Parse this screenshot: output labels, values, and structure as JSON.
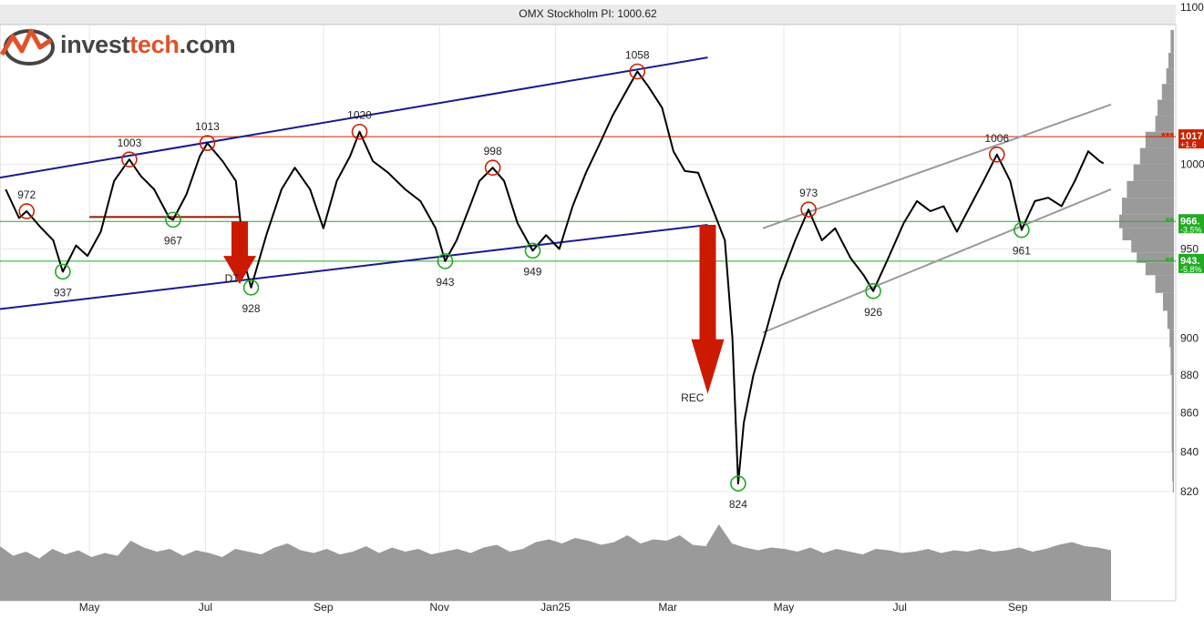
{
  "header": {
    "title": "OMX Stockholm PI: 1000.62"
  },
  "logo": {
    "prefix": "invest",
    "accent": "tech",
    "suffix": ".com",
    "icon": "investtech-logo-icon"
  },
  "colors": {
    "price": "#000000",
    "trend_channel": "#1a1a8c",
    "trend_channel_recent": "#9a9a9a",
    "resistance": "#cc2200",
    "support": "#22aa22",
    "arrow": "#cc1a00",
    "volume": "#9a9a9a",
    "volume_profile": "#9a9a9a"
  },
  "chart_data": {
    "type": "line",
    "title": "OMX Stockholm PI: 1000.62",
    "x_ticks": [
      "May",
      "Jul",
      "Sep",
      "Nov",
      "Jan25",
      "Mar",
      "May",
      "Jul",
      "Sep"
    ],
    "y_ticks": [
      820,
      840,
      860,
      880,
      900,
      950,
      1000,
      1100
    ],
    "y_scale": "log",
    "ylim": [
      810,
      1100
    ],
    "series": [
      {
        "points": [
          [
            "2024-03-18",
            985
          ],
          [
            "2024-03-25",
            968
          ],
          [
            "2024-03-29",
            972
          ],
          [
            "2024-04-05",
            963
          ],
          [
            "2024-04-12",
            955
          ],
          [
            "2024-04-17",
            937
          ],
          [
            "2024-04-24",
            952
          ],
          [
            "2024-04-30",
            946
          ],
          [
            "2024-05-07",
            960
          ],
          [
            "2024-05-14",
            990
          ],
          [
            "2024-05-22",
            1003
          ],
          [
            "2024-05-28",
            993
          ],
          [
            "2024-06-04",
            985
          ],
          [
            "2024-06-12",
            968
          ],
          [
            "2024-06-14",
            967
          ],
          [
            "2024-06-21",
            982
          ],
          [
            "2024-06-28",
            1005
          ],
          [
            "2024-07-02",
            1013
          ],
          [
            "2024-07-10",
            1002
          ],
          [
            "2024-07-17",
            990
          ],
          [
            "2024-07-22",
            940
          ],
          [
            "2024-07-25",
            928
          ],
          [
            "2024-08-02",
            958
          ],
          [
            "2024-08-10",
            985
          ],
          [
            "2024-08-17",
            998
          ],
          [
            "2024-08-25",
            985
          ],
          [
            "2024-09-01",
            962
          ],
          [
            "2024-09-08",
            990
          ],
          [
            "2024-09-15",
            1005
          ],
          [
            "2024-09-20",
            1020
          ],
          [
            "2024-09-27",
            1002
          ],
          [
            "2024-10-05",
            995
          ],
          [
            "2024-10-14",
            985
          ],
          [
            "2024-10-22",
            978
          ],
          [
            "2024-10-30",
            962
          ],
          [
            "2024-11-04",
            943
          ],
          [
            "2024-11-10",
            955
          ],
          [
            "2024-11-17",
            975
          ],
          [
            "2024-11-22",
            990
          ],
          [
            "2024-11-29",
            998
          ],
          [
            "2024-12-05",
            990
          ],
          [
            "2024-12-12",
            965
          ],
          [
            "2024-12-20",
            949
          ],
          [
            "2024-12-27",
            958
          ],
          [
            "2025-01-03",
            950
          ],
          [
            "2025-01-10",
            975
          ],
          [
            "2025-01-17",
            995
          ],
          [
            "2025-01-24",
            1012
          ],
          [
            "2025-01-31",
            1030
          ],
          [
            "2025-02-07",
            1045
          ],
          [
            "2025-02-13",
            1058
          ],
          [
            "2025-02-19",
            1048
          ],
          [
            "2025-02-26",
            1035
          ],
          [
            "2025-03-04",
            1008
          ],
          [
            "2025-03-10",
            996
          ],
          [
            "2025-03-17",
            995
          ],
          [
            "2025-03-24",
            975
          ],
          [
            "2025-03-31",
            955
          ],
          [
            "2025-04-04",
            900
          ],
          [
            "2025-04-07",
            824
          ],
          [
            "2025-04-10",
            855
          ],
          [
            "2025-04-15",
            880
          ],
          [
            "2025-04-22",
            905
          ],
          [
            "2025-04-29",
            932
          ],
          [
            "2025-05-07",
            955
          ],
          [
            "2025-05-14",
            973
          ],
          [
            "2025-05-21",
            955
          ],
          [
            "2025-05-28",
            962
          ],
          [
            "2025-06-05",
            945
          ],
          [
            "2025-06-12",
            935
          ],
          [
            "2025-06-17",
            926
          ],
          [
            "2025-06-25",
            945
          ],
          [
            "2025-07-03",
            965
          ],
          [
            "2025-07-10",
            978
          ],
          [
            "2025-07-17",
            972
          ],
          [
            "2025-07-24",
            975
          ],
          [
            "2025-07-31",
            960
          ],
          [
            "2025-08-07",
            975
          ],
          [
            "2025-08-14",
            990
          ],
          [
            "2025-08-21",
            1006
          ],
          [
            "2025-08-28",
            990
          ],
          [
            "2025-09-03",
            961
          ],
          [
            "2025-09-10",
            978
          ],
          [
            "2025-09-17",
            980
          ],
          [
            "2025-09-24",
            975
          ],
          [
            "2025-10-01",
            990
          ],
          [
            "2025-10-08",
            1008
          ],
          [
            "2025-10-14",
            1002
          ],
          [
            "2025-10-16",
            1000.62
          ]
        ]
      }
    ],
    "extrema_labels": [
      {
        "date": "2024-03-29",
        "value": 972,
        "kind": "top"
      },
      {
        "date": "2024-04-17",
        "value": 937,
        "kind": "bottom"
      },
      {
        "date": "2024-05-22",
        "value": 1003,
        "kind": "top"
      },
      {
        "date": "2024-06-14",
        "value": 967,
        "kind": "bottom"
      },
      {
        "date": "2024-07-02",
        "value": 1013,
        "kind": "top"
      },
      {
        "date": "2024-07-25",
        "value": 928,
        "kind": "bottom"
      },
      {
        "date": "2024-09-20",
        "value": 1020,
        "kind": "top"
      },
      {
        "date": "2024-11-04",
        "value": 943,
        "kind": "bottom"
      },
      {
        "date": "2024-11-29",
        "value": 998,
        "kind": "top"
      },
      {
        "date": "2024-12-20",
        "value": 949,
        "kind": "bottom"
      },
      {
        "date": "2025-02-13",
        "value": 1058,
        "kind": "top"
      },
      {
        "date": "2025-04-07",
        "value": 824,
        "kind": "bottom"
      },
      {
        "date": "2025-05-14",
        "value": 973,
        "kind": "top"
      },
      {
        "date": "2025-06-17",
        "value": 926,
        "kind": "bottom"
      },
      {
        "date": "2025-08-21",
        "value": 1006,
        "kind": "top"
      },
      {
        "date": "2025-09-03",
        "value": 961,
        "kind": "bottom"
      }
    ],
    "trend_channel": {
      "upper": [
        [
          "2024-03-15",
          992
        ],
        [
          "2025-03-22",
          1067
        ]
      ],
      "lower": [
        [
          "2024-03-15",
          916
        ],
        [
          "2025-03-22",
          964
        ]
      ]
    },
    "trend_channel_recent": {
      "upper": [
        [
          "2025-04-20",
          962
        ],
        [
          "2025-10-20",
          1037
        ]
      ],
      "lower": [
        [
          "2025-04-20",
          903
        ],
        [
          "2025-10-20",
          985
        ]
      ]
    },
    "horizontal_levels": [
      {
        "value": 1017,
        "kind": "resistance",
        "label": "1017",
        "pct": "+1.6",
        "stars": "***"
      },
      {
        "value": 966,
        "kind": "support",
        "label": "966.",
        "pct": "-3.5%",
        "stars": "**"
      },
      {
        "value": 943,
        "kind": "support",
        "label": "943.",
        "pct": "-5.8%",
        "stars": "**"
      }
    ],
    "annotations": [
      {
        "text": "DT",
        "date": "2024-07-15",
        "value": 931
      },
      {
        "text": "REC",
        "date": "2025-03-14",
        "value": 866
      }
    ],
    "arrows": [
      {
        "date": "2024-07-19",
        "from": 966,
        "to": 930
      },
      {
        "date": "2025-03-22",
        "from": 964,
        "to": 870
      }
    ],
    "double_top_neckline": [
      [
        "2024-05-01",
        967
      ],
      [
        "2024-07-19",
        967
      ]
    ],
    "volume": [
      4,
      3.3,
      3.6,
      3.1,
      3.8,
      3.4,
      3.7,
      3.2,
      3.5,
      3.3,
      4.4,
      3.9,
      3.6,
      3.8,
      3.3,
      3.7,
      3.5,
      3.2,
      3.8,
      3.6,
      3.4,
      3.9,
      4.2,
      3.7,
      3.5,
      3.8,
      3.4,
      3.6,
      4.0,
      3.5,
      3.9,
      3.6,
      3.8,
      3.4,
      3.6,
      3.8,
      3.5,
      3.9,
      4.1,
      3.6,
      3.8,
      4.3,
      4.5,
      4.2,
      4.6,
      4.4,
      4.1,
      4.3,
      4.8,
      4.2,
      4.5,
      4.4,
      4.8,
      4.1,
      4.0,
      5.6,
      4.2,
      3.9,
      3.7,
      3.9,
      3.8,
      3.6,
      3.9,
      3.5,
      3.8,
      3.6,
      3.4,
      3.8,
      3.7,
      3.5,
      3.6,
      3.8,
      3.5,
      3.7,
      3.6,
      3.8,
      3.6,
      3.7,
      3.9,
      3.6,
      3.8,
      4.1,
      4.3,
      4.0,
      3.9,
      3.7
    ],
    "volume_profile": [
      [
        1085,
        0.06
      ],
      [
        1070,
        0.1
      ],
      [
        1060,
        0.14
      ],
      [
        1050,
        0.22
      ],
      [
        1040,
        0.3
      ],
      [
        1030,
        0.34
      ],
      [
        1020,
        0.52
      ],
      [
        1010,
        0.62
      ],
      [
        1000,
        0.74
      ],
      [
        990,
        0.86
      ],
      [
        980,
        0.95
      ],
      [
        970,
        1.0
      ],
      [
        962,
        0.94
      ],
      [
        955,
        0.78
      ],
      [
        948,
        0.68
      ],
      [
        942,
        0.52
      ],
      [
        935,
        0.34
      ],
      [
        925,
        0.2
      ],
      [
        915,
        0.12
      ],
      [
        905,
        0.08
      ],
      [
        895,
        0.06
      ],
      [
        880,
        0.04
      ],
      [
        860,
        0.04
      ],
      [
        840,
        0.03
      ],
      [
        825,
        0.02
      ]
    ],
    "grid": true,
    "legend": "none"
  }
}
